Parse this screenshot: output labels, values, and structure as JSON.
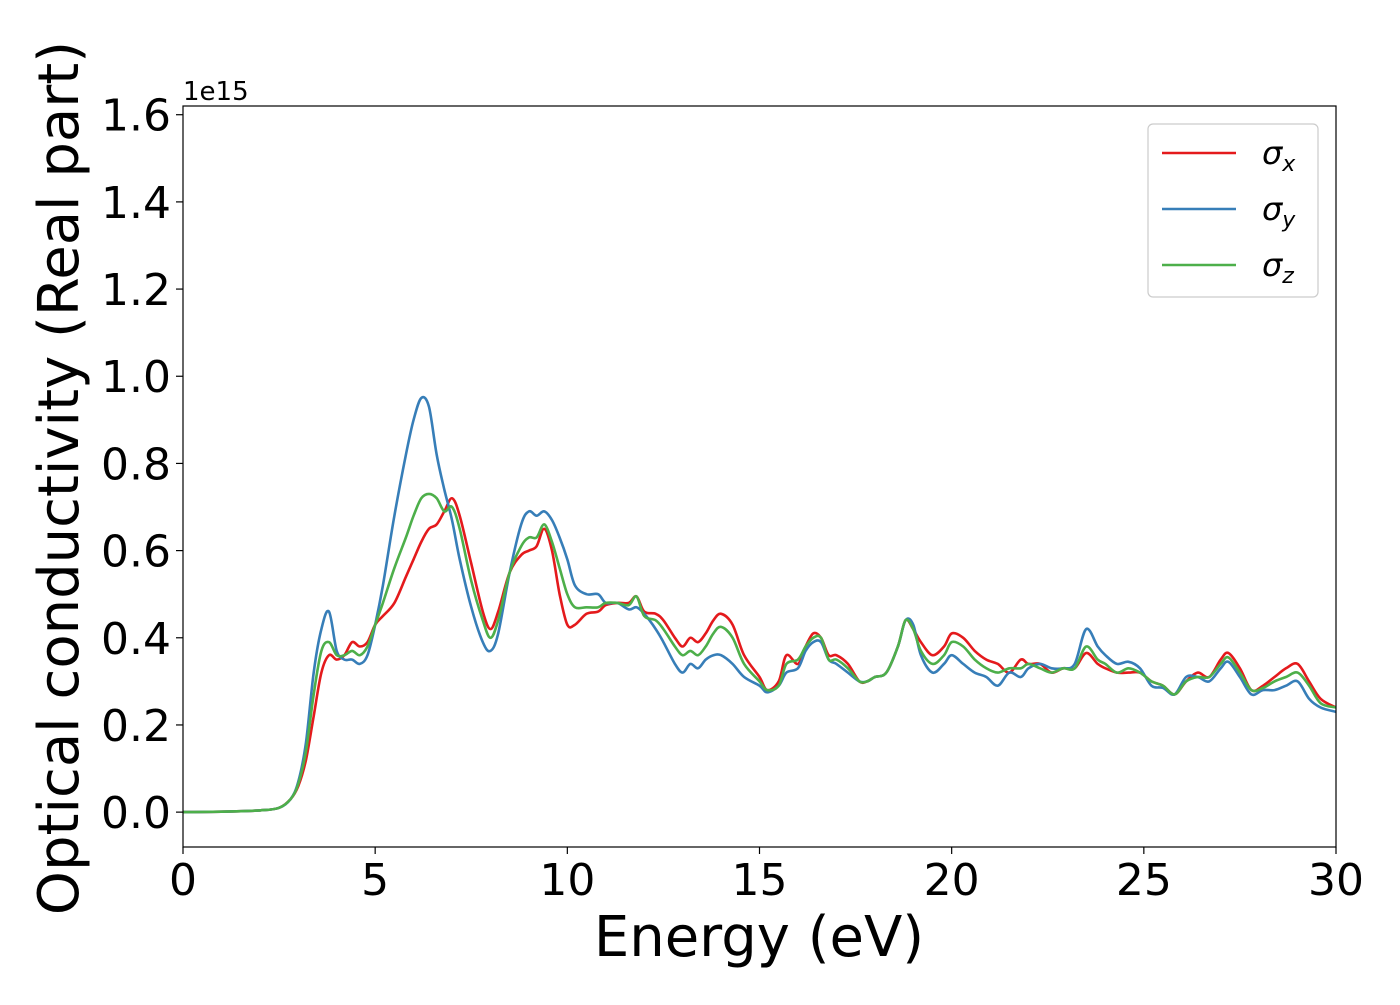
{
  "chart_data": {
    "type": "line",
    "xlabel": "Energy (eV)",
    "ylabel": "Optical conductivity (Real part)",
    "y_offset_text": "1e15",
    "xlim": [
      0,
      30
    ],
    "ylim": [
      -0.08,
      1.62
    ],
    "y_multiplier": 1000000000000000.0,
    "x_ticks": [
      "0",
      "5",
      "10",
      "15",
      "20",
      "25",
      "30"
    ],
    "x_tick_values": [
      0,
      5,
      10,
      15,
      20,
      25,
      30
    ],
    "y_ticks": [
      "0.0",
      "0.2",
      "0.4",
      "0.6",
      "0.8",
      "1.0",
      "1.2",
      "1.4",
      "1.6"
    ],
    "y_tick_values": [
      0,
      0.2,
      0.4,
      0.6,
      0.8,
      1.0,
      1.2,
      1.4,
      1.6
    ],
    "grid": false,
    "legend_position": "top-right",
    "series": [
      {
        "name": "σx",
        "legend_base": "σ",
        "legend_sub": "x",
        "color": "#e41a1c",
        "x": [
          0,
          1,
          2,
          2.5,
          2.8,
          3.0,
          3.2,
          3.4,
          3.6,
          3.8,
          4.0,
          4.2,
          4.4,
          4.6,
          4.8,
          5.0,
          5.2,
          5.5,
          5.8,
          6.0,
          6.2,
          6.4,
          6.6,
          6.8,
          7.0,
          7.2,
          7.5,
          7.8,
          8.0,
          8.2,
          8.5,
          8.8,
          9.0,
          9.2,
          9.4,
          9.6,
          9.8,
          10.0,
          10.2,
          10.5,
          10.8,
          11.0,
          11.3,
          11.6,
          11.8,
          12.0,
          12.3,
          12.5,
          12.8,
          13.0,
          13.2,
          13.4,
          13.6,
          13.8,
          14.0,
          14.3,
          14.6,
          15.0,
          15.2,
          15.5,
          15.7,
          16.0,
          16.2,
          16.4,
          16.6,
          16.8,
          17.0,
          17.3,
          17.6,
          17.8,
          18.0,
          18.3,
          18.6,
          18.8,
          19.0,
          19.2,
          19.5,
          19.8,
          20.0,
          20.3,
          20.6,
          20.9,
          21.2,
          21.5,
          21.8,
          22.0,
          22.3,
          22.6,
          22.9,
          23.2,
          23.5,
          23.8,
          24.0,
          24.3,
          24.6,
          24.9,
          25.2,
          25.5,
          25.8,
          26.1,
          26.4,
          26.7,
          27.0,
          27.2,
          27.5,
          27.8,
          28.1,
          28.4,
          28.7,
          29.0,
          29.3,
          29.6,
          30
        ],
        "y": [
          0,
          0.001,
          0.004,
          0.01,
          0.03,
          0.06,
          0.12,
          0.22,
          0.32,
          0.36,
          0.35,
          0.36,
          0.39,
          0.38,
          0.39,
          0.43,
          0.45,
          0.48,
          0.54,
          0.58,
          0.62,
          0.65,
          0.66,
          0.69,
          0.72,
          0.68,
          0.57,
          0.46,
          0.42,
          0.46,
          0.55,
          0.59,
          0.6,
          0.61,
          0.65,
          0.6,
          0.5,
          0.43,
          0.43,
          0.455,
          0.46,
          0.475,
          0.48,
          0.48,
          0.495,
          0.46,
          0.455,
          0.44,
          0.4,
          0.38,
          0.4,
          0.39,
          0.41,
          0.44,
          0.455,
          0.43,
          0.36,
          0.31,
          0.28,
          0.3,
          0.36,
          0.34,
          0.38,
          0.41,
          0.4,
          0.36,
          0.36,
          0.34,
          0.3,
          0.3,
          0.31,
          0.32,
          0.38,
          0.44,
          0.42,
          0.39,
          0.36,
          0.38,
          0.41,
          0.4,
          0.37,
          0.35,
          0.34,
          0.32,
          0.35,
          0.34,
          0.34,
          0.32,
          0.33,
          0.33,
          0.365,
          0.34,
          0.33,
          0.32,
          0.32,
          0.32,
          0.3,
          0.29,
          0.27,
          0.3,
          0.32,
          0.31,
          0.35,
          0.365,
          0.33,
          0.28,
          0.29,
          0.31,
          0.33,
          0.34,
          0.3,
          0.26,
          0.24
        ]
      },
      {
        "name": "σy",
        "legend_base": "σ",
        "legend_sub": "y",
        "color": "#377eb8",
        "x": [
          0,
          1,
          2,
          2.5,
          2.8,
          3.0,
          3.2,
          3.4,
          3.6,
          3.8,
          4.0,
          4.2,
          4.4,
          4.6,
          4.8,
          5.0,
          5.2,
          5.5,
          5.8,
          6.0,
          6.2,
          6.4,
          6.6,
          6.8,
          7.0,
          7.2,
          7.5,
          7.8,
          8.0,
          8.2,
          8.5,
          8.8,
          9.0,
          9.2,
          9.4,
          9.6,
          9.8,
          10.0,
          10.2,
          10.5,
          10.8,
          11.0,
          11.3,
          11.6,
          11.8,
          12.0,
          12.3,
          12.5,
          12.8,
          13.0,
          13.2,
          13.4,
          13.6,
          13.8,
          14.0,
          14.3,
          14.6,
          15.0,
          15.2,
          15.5,
          15.7,
          16.0,
          16.2,
          16.4,
          16.6,
          16.8,
          17.0,
          17.3,
          17.6,
          17.8,
          18.0,
          18.3,
          18.6,
          18.8,
          19.0,
          19.2,
          19.5,
          19.8,
          20.0,
          20.3,
          20.6,
          20.9,
          21.2,
          21.5,
          21.8,
          22.0,
          22.3,
          22.6,
          22.9,
          23.2,
          23.5,
          23.8,
          24.0,
          24.3,
          24.6,
          24.9,
          25.2,
          25.5,
          25.8,
          26.1,
          26.4,
          26.7,
          27.0,
          27.2,
          27.5,
          27.8,
          28.1,
          28.4,
          28.7,
          29.0,
          29.3,
          29.6,
          30
        ],
        "y": [
          0,
          0.001,
          0.004,
          0.01,
          0.03,
          0.07,
          0.16,
          0.32,
          0.42,
          0.46,
          0.37,
          0.35,
          0.35,
          0.34,
          0.36,
          0.43,
          0.52,
          0.68,
          0.82,
          0.9,
          0.95,
          0.93,
          0.82,
          0.74,
          0.67,
          0.58,
          0.47,
          0.39,
          0.37,
          0.41,
          0.55,
          0.66,
          0.69,
          0.68,
          0.69,
          0.67,
          0.63,
          0.58,
          0.52,
          0.5,
          0.5,
          0.48,
          0.48,
          0.465,
          0.47,
          0.455,
          0.42,
          0.39,
          0.34,
          0.32,
          0.34,
          0.33,
          0.35,
          0.36,
          0.36,
          0.34,
          0.31,
          0.29,
          0.275,
          0.29,
          0.32,
          0.33,
          0.37,
          0.39,
          0.39,
          0.35,
          0.34,
          0.32,
          0.3,
          0.3,
          0.31,
          0.32,
          0.38,
          0.44,
          0.43,
          0.36,
          0.32,
          0.34,
          0.36,
          0.34,
          0.32,
          0.31,
          0.29,
          0.32,
          0.31,
          0.33,
          0.34,
          0.33,
          0.33,
          0.34,
          0.42,
          0.38,
          0.36,
          0.34,
          0.345,
          0.33,
          0.29,
          0.285,
          0.27,
          0.31,
          0.31,
          0.3,
          0.33,
          0.345,
          0.31,
          0.27,
          0.28,
          0.28,
          0.29,
          0.3,
          0.26,
          0.24,
          0.23
        ]
      },
      {
        "name": "σz",
        "legend_base": "σ",
        "legend_sub": "z",
        "color": "#4daf4a",
        "x": [
          0,
          1,
          2,
          2.5,
          2.8,
          3.0,
          3.2,
          3.4,
          3.6,
          3.8,
          4.0,
          4.2,
          4.4,
          4.6,
          4.8,
          5.0,
          5.2,
          5.5,
          5.8,
          6.0,
          6.2,
          6.4,
          6.6,
          6.8,
          7.0,
          7.2,
          7.5,
          7.8,
          8.0,
          8.2,
          8.5,
          8.8,
          9.0,
          9.2,
          9.4,
          9.6,
          9.8,
          10.0,
          10.2,
          10.5,
          10.8,
          11.0,
          11.3,
          11.6,
          11.8,
          12.0,
          12.3,
          12.5,
          12.8,
          13.0,
          13.2,
          13.4,
          13.6,
          13.8,
          14.0,
          14.3,
          14.6,
          15.0,
          15.2,
          15.5,
          15.7,
          16.0,
          16.2,
          16.4,
          16.6,
          16.8,
          17.0,
          17.3,
          17.6,
          17.8,
          18.0,
          18.3,
          18.6,
          18.8,
          19.0,
          19.2,
          19.5,
          19.8,
          20.0,
          20.3,
          20.6,
          20.9,
          21.2,
          21.5,
          21.8,
          22.0,
          22.3,
          22.6,
          22.9,
          23.2,
          23.5,
          23.8,
          24.0,
          24.3,
          24.6,
          24.9,
          25.2,
          25.5,
          25.8,
          26.1,
          26.4,
          26.7,
          27.0,
          27.2,
          27.5,
          27.8,
          28.1,
          28.4,
          28.7,
          29.0,
          29.3,
          29.6,
          30
        ],
        "y": [
          0,
          0.001,
          0.004,
          0.01,
          0.03,
          0.065,
          0.14,
          0.27,
          0.37,
          0.39,
          0.36,
          0.36,
          0.37,
          0.36,
          0.38,
          0.43,
          0.48,
          0.56,
          0.63,
          0.68,
          0.72,
          0.73,
          0.72,
          0.69,
          0.7,
          0.65,
          0.53,
          0.44,
          0.4,
          0.44,
          0.55,
          0.61,
          0.63,
          0.63,
          0.66,
          0.62,
          0.56,
          0.5,
          0.47,
          0.47,
          0.47,
          0.48,
          0.48,
          0.475,
          0.495,
          0.45,
          0.44,
          0.42,
          0.38,
          0.36,
          0.37,
          0.36,
          0.38,
          0.41,
          0.425,
          0.4,
          0.34,
          0.3,
          0.28,
          0.29,
          0.34,
          0.35,
          0.38,
          0.4,
          0.4,
          0.35,
          0.35,
          0.33,
          0.3,
          0.3,
          0.31,
          0.32,
          0.38,
          0.44,
          0.42,
          0.37,
          0.34,
          0.36,
          0.39,
          0.38,
          0.35,
          0.33,
          0.32,
          0.33,
          0.33,
          0.34,
          0.33,
          0.32,
          0.33,
          0.33,
          0.38,
          0.35,
          0.34,
          0.32,
          0.33,
          0.32,
          0.3,
          0.29,
          0.27,
          0.3,
          0.31,
          0.31,
          0.34,
          0.355,
          0.32,
          0.28,
          0.285,
          0.3,
          0.31,
          0.32,
          0.29,
          0.25,
          0.24
        ]
      }
    ]
  }
}
